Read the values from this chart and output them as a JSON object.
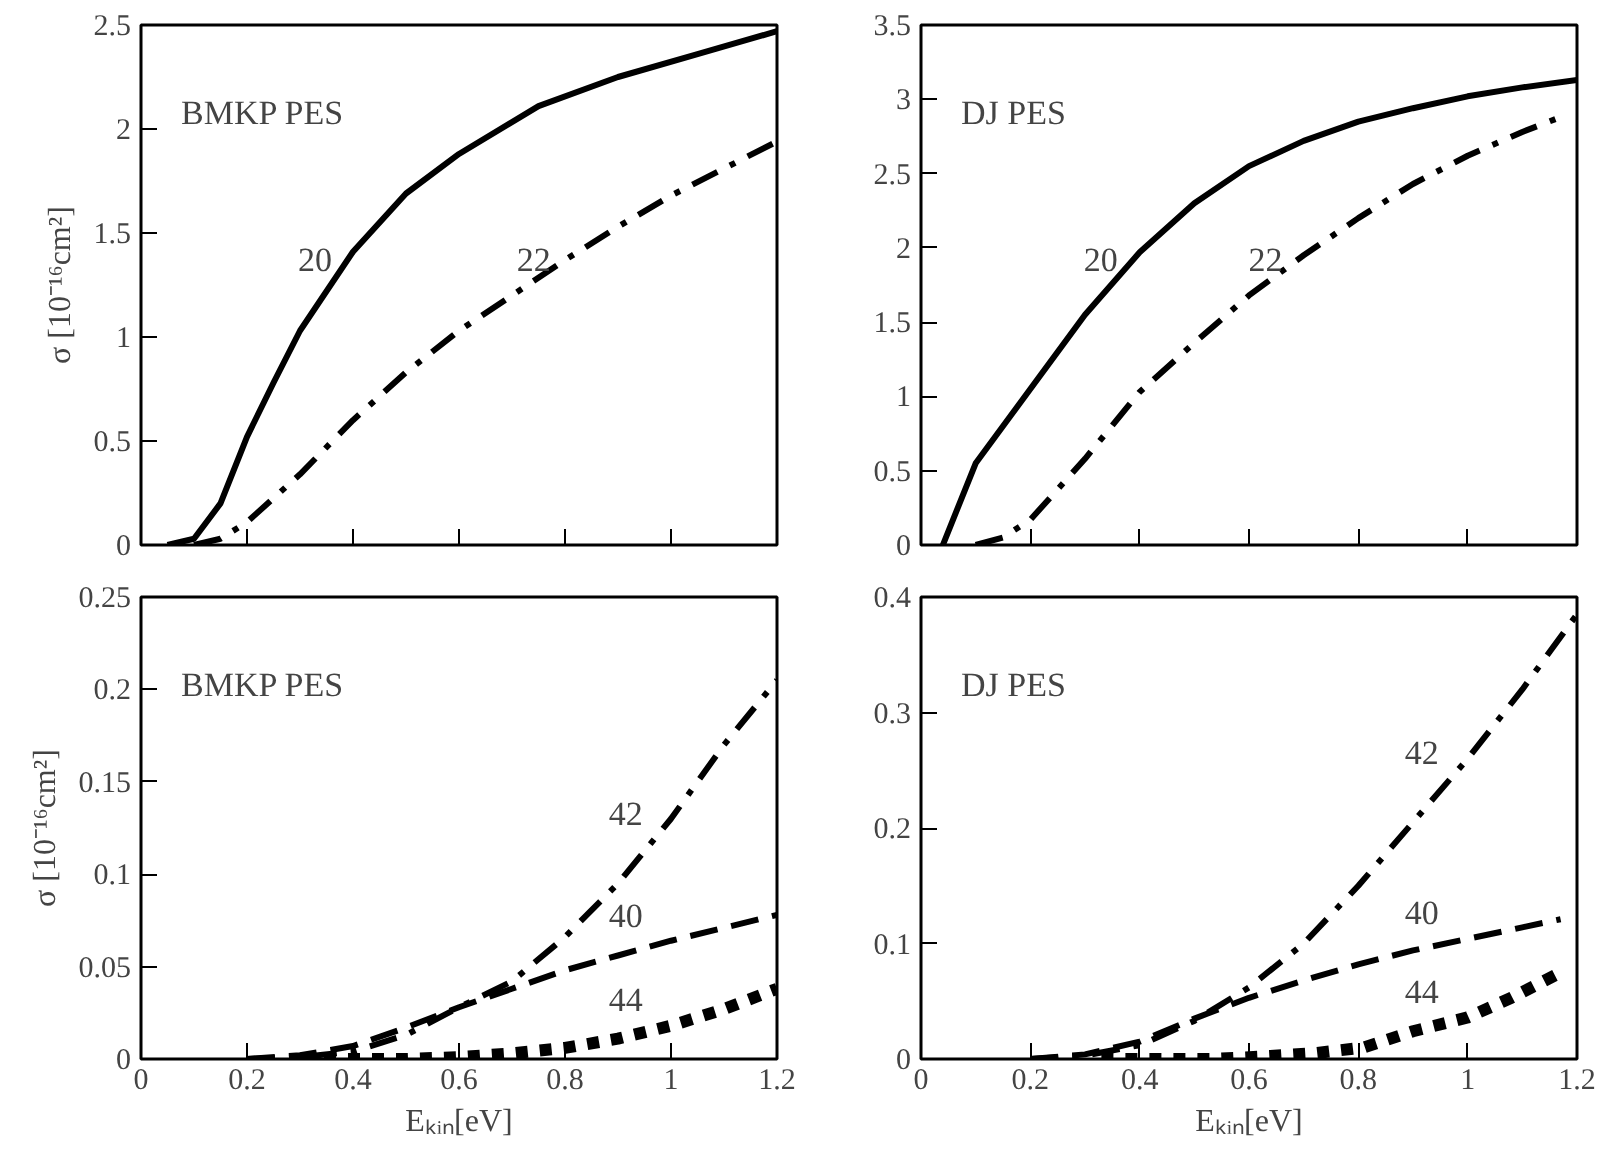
{
  "chart_data": [
    {
      "type": "line",
      "ylabel": "σ [10⁻¹⁶cm²]",
      "xlim": [
        0,
        1.2
      ],
      "xticks": [
        0,
        0.2,
        0.4,
        0.6,
        0.8,
        1,
        1.2
      ],
      "ylim": [
        0,
        2.5
      ],
      "yticks": [
        0,
        0.5,
        1,
        1.5,
        2,
        2.5
      ],
      "tick_labels": "y",
      "grid": false,
      "legend": false,
      "annotations": [
        "BMKP  PES"
      ],
      "series": [
        {
          "name": "20",
          "color": "#000000",
          "line_style": "solid",
          "x": [
            0.05,
            0.1,
            0.15,
            0.2,
            0.25,
            0.3,
            0.4,
            0.5,
            0.6,
            0.75,
            0.9,
            1.05,
            1.2
          ],
          "values": [
            0,
            0.03,
            0.2,
            0.52,
            0.78,
            1.03,
            1.41,
            1.69,
            1.88,
            2.11,
            2.25,
            2.36,
            2.47
          ]
        },
        {
          "name": "22",
          "color": "#000000",
          "line_style": "dashdot",
          "x": [
            0.1,
            0.15,
            0.2,
            0.3,
            0.4,
            0.5,
            0.6,
            0.7,
            0.8,
            0.9,
            1.0,
            1.1,
            1.2
          ],
          "values": [
            0,
            0.03,
            0.11,
            0.34,
            0.6,
            0.83,
            1.03,
            1.2,
            1.37,
            1.53,
            1.68,
            1.81,
            1.94
          ]
        }
      ]
    },
    {
      "type": "line",
      "xlim": [
        0,
        1.2
      ],
      "xticks": [
        0,
        0.2,
        0.4,
        0.6,
        0.8,
        1,
        1.2
      ],
      "ylim": [
        0,
        3.5
      ],
      "yticks": [
        0,
        0.5,
        1,
        1.5,
        2,
        2.5,
        3,
        3.5
      ],
      "tick_labels": "y",
      "grid": false,
      "legend": false,
      "annotations": [
        "DJ  PES"
      ],
      "series": [
        {
          "name": "20",
          "color": "#000000",
          "line_style": "solid",
          "x": [
            0.04,
            0.1,
            0.2,
            0.3,
            0.4,
            0.5,
            0.6,
            0.7,
            0.8,
            0.9,
            1.0,
            1.1,
            1.2
          ],
          "values": [
            0,
            0.55,
            1.05,
            1.55,
            1.97,
            2.3,
            2.55,
            2.72,
            2.85,
            2.94,
            3.02,
            3.08,
            3.13
          ]
        },
        {
          "name": "22",
          "color": "#000000",
          "line_style": "dashdot",
          "x": [
            0.1,
            0.15,
            0.2,
            0.3,
            0.4,
            0.5,
            0.6,
            0.7,
            0.8,
            0.9,
            1.0,
            1.1,
            1.17
          ],
          "values": [
            0,
            0.05,
            0.17,
            0.58,
            1.03,
            1.36,
            1.68,
            1.95,
            2.2,
            2.43,
            2.62,
            2.78,
            2.88
          ]
        }
      ]
    },
    {
      "type": "line",
      "xlabel": "Eₖᵢₙ[eV]",
      "ylabel": "σ [10⁻¹⁶cm²]",
      "xlim": [
        0,
        1.2
      ],
      "xticks": [
        0,
        0.2,
        0.4,
        0.6,
        0.8,
        1,
        1.2
      ],
      "ylim": [
        0,
        0.25
      ],
      "yticks": [
        0,
        0.05,
        0.1,
        0.15,
        0.2,
        0.25
      ],
      "grid": false,
      "legend": false,
      "annotations": [
        "BMKP  PES"
      ],
      "series": [
        {
          "name": "42",
          "color": "#000000",
          "line_style": "dashdot",
          "x": [
            0.2,
            0.3,
            0.4,
            0.5,
            0.6,
            0.7,
            0.8,
            0.9,
            1.0,
            1.1,
            1.2
          ],
          "values": [
            0,
            0.001,
            0.004,
            0.013,
            0.028,
            0.042,
            0.066,
            0.095,
            0.13,
            0.17,
            0.205
          ]
        },
        {
          "name": "40",
          "color": "#000000",
          "line_style": "dashed",
          "x": [
            0.2,
            0.3,
            0.4,
            0.5,
            0.6,
            0.7,
            0.8,
            0.9,
            1.0,
            1.1,
            1.2
          ],
          "values": [
            0,
            0.002,
            0.007,
            0.017,
            0.028,
            0.038,
            0.048,
            0.056,
            0.064,
            0.071,
            0.078
          ]
        },
        {
          "name": "44",
          "color": "#000000",
          "line_style": "dotted",
          "x": [
            0.3,
            0.4,
            0.5,
            0.6,
            0.7,
            0.8,
            0.9,
            1.0,
            1.1,
            1.2
          ],
          "values": [
            0,
            0,
            0,
            0.001,
            0.003,
            0.006,
            0.011,
            0.018,
            0.027,
            0.038
          ]
        }
      ]
    },
    {
      "type": "line",
      "xlabel": "Eₖᵢₙ[eV]",
      "xlim": [
        0,
        1.2
      ],
      "xticks": [
        0,
        0.2,
        0.4,
        0.6,
        0.8,
        1,
        1.2
      ],
      "ylim": [
        0,
        0.4
      ],
      "yticks": [
        0,
        0.1,
        0.2,
        0.3,
        0.4
      ],
      "grid": false,
      "legend": false,
      "annotations": [
        "DJ  PES"
      ],
      "series": [
        {
          "name": "42",
          "color": "#000000",
          "line_style": "dashdot",
          "x": [
            0.2,
            0.3,
            0.4,
            0.5,
            0.6,
            0.7,
            0.8,
            0.9,
            1.0,
            1.1,
            1.2
          ],
          "values": [
            0,
            0.003,
            0.012,
            0.033,
            0.062,
            0.1,
            0.15,
            0.205,
            0.26,
            0.32,
            0.385
          ]
        },
        {
          "name": "40",
          "color": "#000000",
          "line_style": "dashed",
          "x": [
            0.2,
            0.3,
            0.4,
            0.5,
            0.6,
            0.7,
            0.8,
            0.9,
            1.0,
            1.1,
            1.17
          ],
          "values": [
            0,
            0.004,
            0.015,
            0.035,
            0.053,
            0.068,
            0.082,
            0.094,
            0.104,
            0.114,
            0.121
          ]
        },
        {
          "name": "44",
          "color": "#000000",
          "line_style": "dotted",
          "x": [
            0.33,
            0.43,
            0.53,
            0.62,
            0.72,
            0.81,
            0.9,
            1.0,
            1.08,
            1.17
          ],
          "values": [
            0,
            0,
            0,
            0.002,
            0.005,
            0.01,
            0.024,
            0.036,
            0.053,
            0.075
          ]
        }
      ]
    }
  ]
}
